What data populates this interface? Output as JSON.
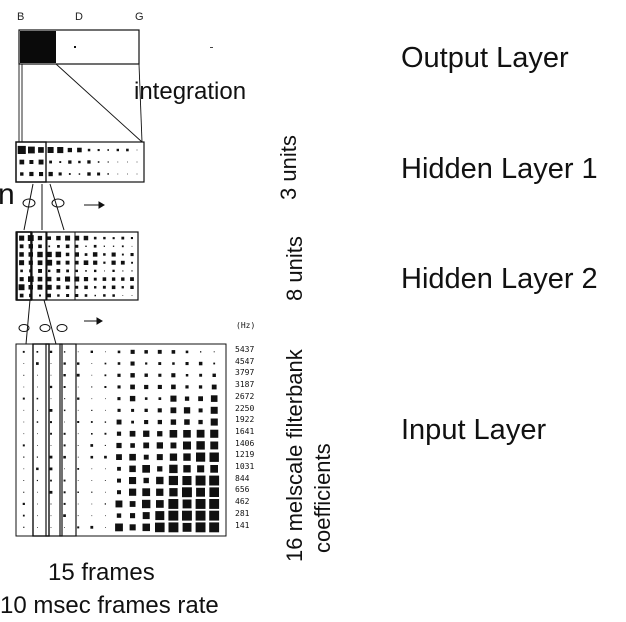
{
  "output_letters": [
    "B",
    "D",
    "G"
  ],
  "integration_label": "integration",
  "layers": {
    "output": "Output Layer",
    "hidden1": "Hidden Layer 1",
    "hidden2": "Hidden Layer 2",
    "input": "Input Layer"
  },
  "units": {
    "hidden1": "3 units",
    "hidden2": "8 units",
    "input_line1": "16 melscale filterbank",
    "input_line2": "coefficients"
  },
  "hz_label": "(Hz)",
  "frequencies": [
    "5437",
    "4547",
    "3797",
    "3187",
    "2672",
    "2250",
    "1922",
    "1641",
    "1406",
    "1219",
    "1031",
    "844",
    "656",
    "462",
    "281",
    "141"
  ],
  "bottom": {
    "frames": "15 frames",
    "rate": "10 msec frames rate"
  },
  "cut_glyph": "n",
  "colors": {
    "ink": "#111111",
    "paper": "#ffffff"
  }
}
